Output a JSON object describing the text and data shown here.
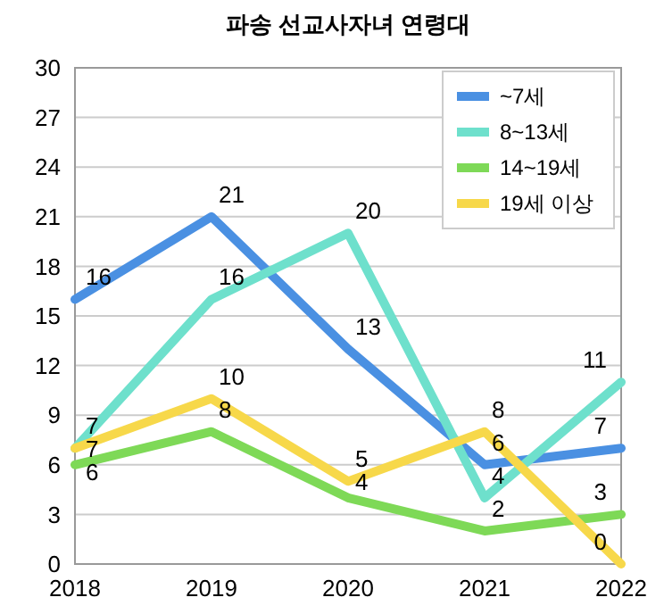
{
  "chart_data": {
    "type": "line",
    "title": "파송 선교사자녀 연령대",
    "categories": [
      "2018",
      "2019",
      "2020",
      "2021",
      "2022"
    ],
    "series": [
      {
        "name": "~7세",
        "color": "#4a90e2",
        "values": [
          16,
          21,
          13,
          6,
          7
        ]
      },
      {
        "name": "8~13세",
        "color": "#6ee0cc",
        "values": [
          7,
          16,
          20,
          4,
          11
        ]
      },
      {
        "name": "14~19세",
        "color": "#7ed957",
        "values": [
          6,
          8,
          4,
          2,
          3
        ]
      },
      {
        "name": "19세 이상",
        "color": "#f7d84a",
        "values": [
          7,
          10,
          5,
          8,
          0
        ]
      }
    ],
    "ylim": [
      0,
      30
    ],
    "yticks": [
      0,
      3,
      6,
      9,
      12,
      15,
      18,
      21,
      24,
      27,
      30
    ],
    "grid": "y",
    "legend": "top right",
    "data_labels": true,
    "marker": "none",
    "line_style": "solid"
  }
}
